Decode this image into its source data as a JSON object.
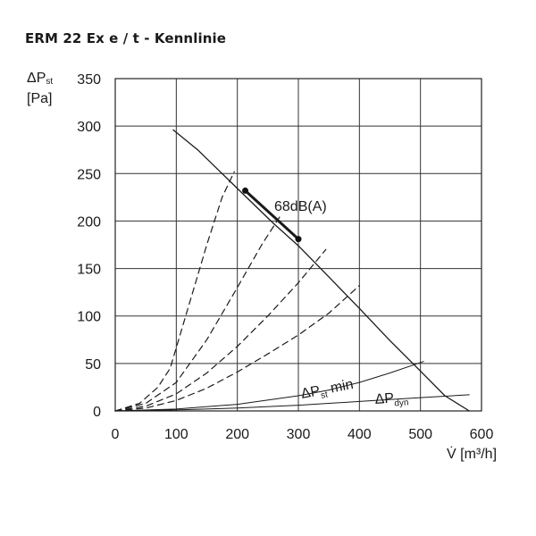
{
  "chart_data": {
    "type": "line",
    "title": "ERM 22 Ex e / t - Kennlinie",
    "ylabel": {
      "symbol": "ΔP",
      "sub": "st",
      "unit": "[Pa]"
    },
    "xlabel": "V̇ [m³/h]",
    "xlim": [
      0,
      600
    ],
    "ylim": [
      0,
      350
    ],
    "xticks": [
      "0",
      "100",
      "200",
      "300",
      "400",
      "500",
      "600"
    ],
    "yticks": [
      "0",
      "50",
      "100",
      "150",
      "200",
      "250",
      "300",
      "350"
    ],
    "grid": true,
    "series": [
      {
        "style": "solid",
        "points": [
          [
            95,
            296
          ],
          [
            135,
            275
          ],
          [
            175,
            250
          ],
          [
            215,
            225
          ],
          [
            260,
            197
          ],
          [
            300,
            174
          ],
          [
            350,
            141
          ],
          [
            400,
            108
          ],
          [
            450,
            74
          ],
          [
            500,
            42
          ],
          [
            540,
            16
          ],
          [
            580,
            0
          ]
        ]
      },
      {
        "style": "dashed",
        "points": [
          [
            0,
            0
          ],
          [
            40,
            8
          ],
          [
            70,
            25
          ],
          [
            90,
            45
          ],
          [
            120,
            110
          ],
          [
            150,
            175
          ],
          [
            175,
            225
          ],
          [
            195,
            252
          ]
        ]
      },
      {
        "style": "dashed",
        "points": [
          [
            0,
            0
          ],
          [
            50,
            8
          ],
          [
            100,
            30
          ],
          [
            150,
            75
          ],
          [
            200,
            130
          ],
          [
            240,
            175
          ],
          [
            270,
            205
          ]
        ]
      },
      {
        "style": "dashed",
        "points": [
          [
            0,
            0
          ],
          [
            50,
            5
          ],
          [
            100,
            18
          ],
          [
            150,
            40
          ],
          [
            200,
            68
          ],
          [
            250,
            100
          ],
          [
            300,
            135
          ],
          [
            345,
            170
          ]
        ]
      },
      {
        "style": "dashed",
        "points": [
          [
            0,
            0
          ],
          [
            50,
            3
          ],
          [
            100,
            11
          ],
          [
            150,
            24
          ],
          [
            200,
            41
          ],
          [
            250,
            60
          ],
          [
            300,
            80
          ],
          [
            350,
            103
          ],
          [
            400,
            132
          ]
        ]
      },
      {
        "style": "solid-thin",
        "points": [
          [
            0,
            0
          ],
          [
            100,
            2
          ],
          [
            200,
            7
          ],
          [
            300,
            16
          ],
          [
            350,
            22
          ],
          [
            400,
            30
          ],
          [
            450,
            40
          ],
          [
            505,
            52
          ]
        ]
      },
      {
        "style": "solid-thin",
        "points": [
          [
            0,
            0
          ],
          [
            100,
            1
          ],
          [
            200,
            3
          ],
          [
            300,
            6
          ],
          [
            400,
            10
          ],
          [
            500,
            14
          ],
          [
            580,
            17
          ]
        ]
      },
      {
        "style": "bold",
        "points": [
          [
            213,
            232
          ],
          [
            300,
            181
          ]
        ]
      }
    ],
    "markers": [
      [
        213,
        232
      ],
      [
        300,
        181
      ]
    ],
    "annotations": [
      {
        "id": "noise",
        "text": "68dB(A)"
      },
      {
        "id": "pst_min",
        "symbol": "ΔP",
        "sub": "st",
        "rest": " min"
      },
      {
        "id": "pdyn",
        "symbol": "ΔP",
        "sub": "dyn"
      }
    ]
  }
}
